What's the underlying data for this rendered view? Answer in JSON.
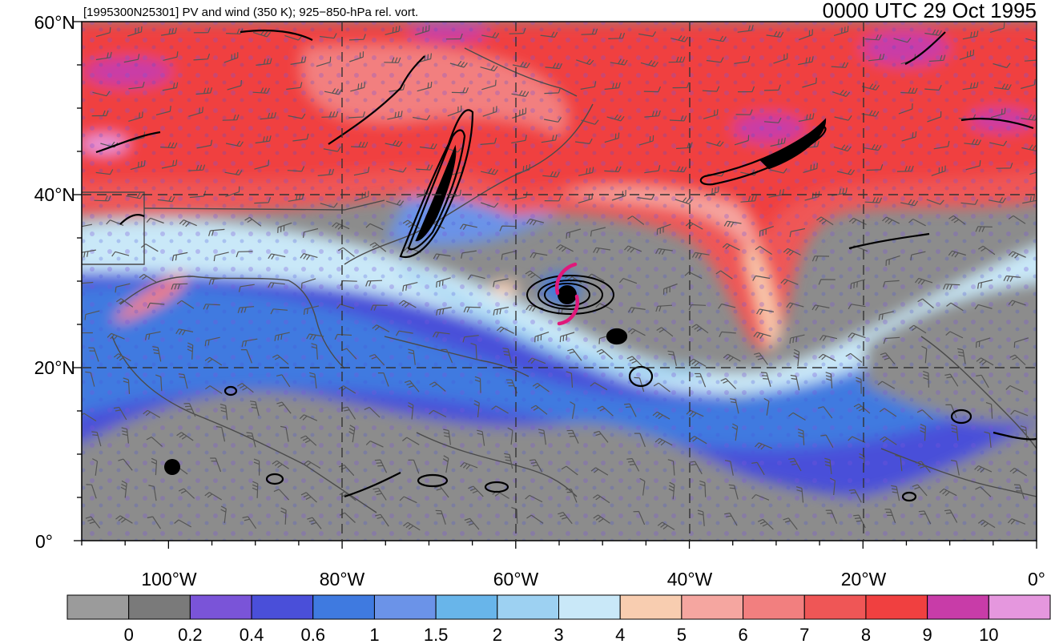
{
  "header": {
    "left_title": "[1995300N25301] PV and wind (350 K); 925−850-hPa rel. vort.",
    "right_title": "0000 UTC 29 Oct 1995"
  },
  "map": {
    "lon_range": [
      -110,
      0
    ],
    "lat_range": [
      0,
      60
    ],
    "lat_labels": [
      "60°N",
      "40°N",
      "20°N",
      "0°"
    ],
    "lon_labels": [
      "100°W",
      "80°W",
      "60°W",
      "40°W",
      "20°W",
      "0°"
    ],
    "storm_symbol": "tropical-cyclone-icon",
    "storm_color": "#e0187a"
  },
  "colorbar": {
    "labels": [
      "0",
      "0.2",
      "0.4",
      "0.6",
      "1",
      "1.5",
      "2",
      "3",
      "4",
      "5",
      "6",
      "7",
      "8",
      "9",
      "10"
    ],
    "colors": [
      "#9b9b9b",
      "#7a7a7a",
      "#7a54d8",
      "#4a4fd9",
      "#3f7ae0",
      "#6b93e8",
      "#68b5ea",
      "#9dd1f2",
      "#c9e8f8",
      "#f8cdb0",
      "#f5a6a0",
      "#f27f7f",
      "#ef5656",
      "#f04040",
      "#c83ca8",
      "#e597de"
    ]
  }
}
